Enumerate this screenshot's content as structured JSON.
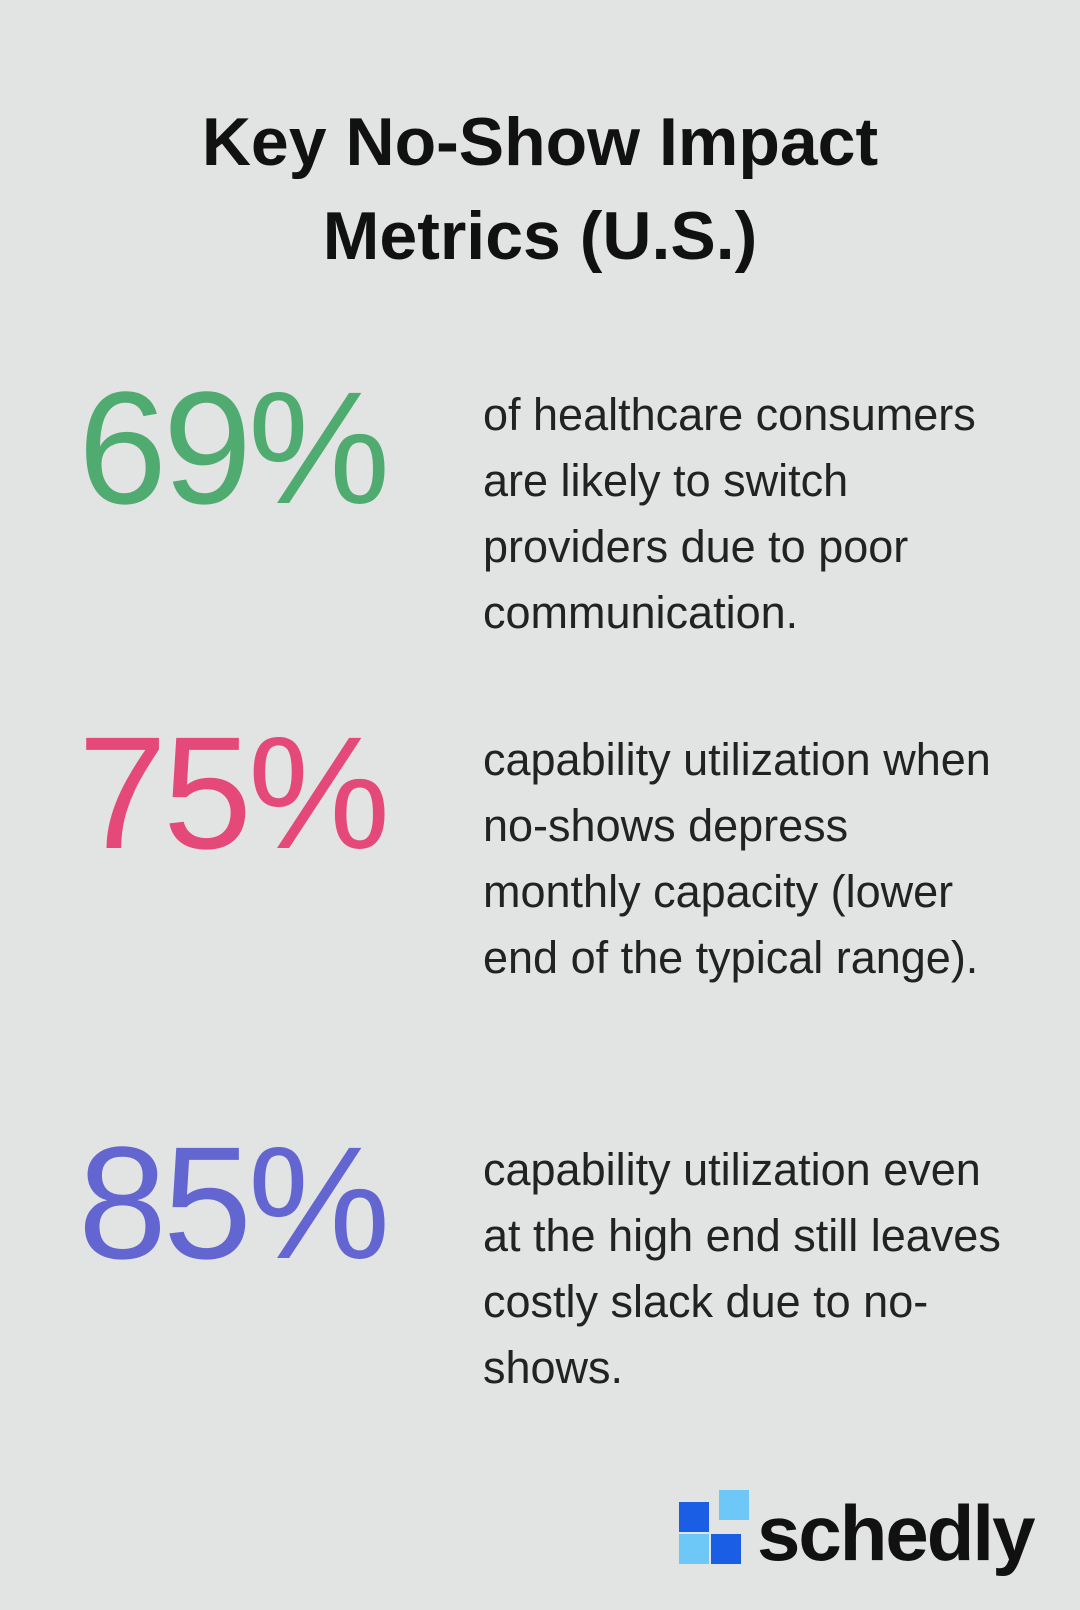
{
  "header": {
    "title": "Key No-Show Impact Metrics (U.S.)"
  },
  "metrics": [
    {
      "value": "69%",
      "color": "#4fab70",
      "description": "of healthcare consumers are likely to switch providers due to poor communication."
    },
    {
      "value": "75%",
      "color": "#e4497a",
      "description": "capability utilization when no-shows depress monthly capacity (lower end of the typical range)."
    },
    {
      "value": "85%",
      "color": "#6366d1",
      "description": "capability utilization even at the high end still leaves costly slack due to no-shows."
    }
  ],
  "logo": {
    "text": "schedly"
  }
}
